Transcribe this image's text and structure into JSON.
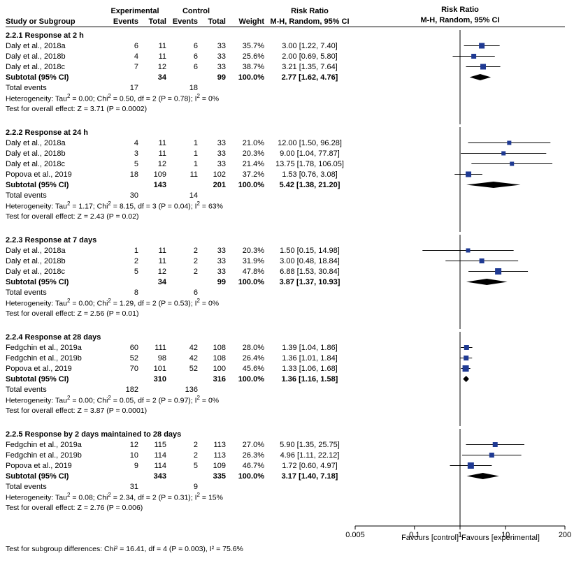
{
  "headers": {
    "study": "Study or Subgroup",
    "expGroup": "Experimental",
    "ctrlGroup": "Control",
    "events": "Events",
    "total": "Total",
    "weight": "Weight",
    "rr": "Risk Ratio",
    "rrModel": "M-H, Random, 95% CI"
  },
  "plot": {
    "domain_min": 0.005,
    "domain_max": 200,
    "domain_center": 1,
    "ticks": [
      0.005,
      0.1,
      1,
      10,
      200
    ],
    "tick_labels": [
      "0.005",
      "0.1",
      "1",
      "10",
      "200"
    ],
    "left_label": "Favours [control]",
    "right_label": "Favours [experimental]",
    "square_color": "#1f3a93",
    "diamond_color": "#000000",
    "line_color": "#000000"
  },
  "groups": [
    {
      "title": "2.2.1 Response at 2 h",
      "rows": [
        {
          "study": "Daly et al., 2018a",
          "e1": 6,
          "t1": 11,
          "e2": 6,
          "t2": 33,
          "w": "35.7%",
          "rr": "3.00 [1.22, 7.40]",
          "pt": 3.0,
          "lo": 1.22,
          "hi": 7.4,
          "sq": 8
        },
        {
          "study": "Daly et al., 2018b",
          "e1": 4,
          "t1": 11,
          "e2": 6,
          "t2": 33,
          "w": "25.6%",
          "rr": "2.00 [0.69, 5.80]",
          "pt": 2.0,
          "lo": 0.69,
          "hi": 5.8,
          "sq": 7
        },
        {
          "study": "Daly et al., 2018c",
          "e1": 7,
          "t1": 12,
          "e2": 6,
          "t2": 33,
          "w": "38.7%",
          "rr": "3.21 [1.35, 7.64]",
          "pt": 3.21,
          "lo": 1.35,
          "hi": 7.64,
          "sq": 8
        }
      ],
      "subtotal": {
        "t1": 34,
        "t2": 99,
        "w": "100.0%",
        "rr": "2.77 [1.62, 4.76]",
        "pt": 2.77,
        "lo": 1.62,
        "hi": 4.76
      },
      "total_events": {
        "label": "Total events",
        "e1": 17,
        "e2": 18
      },
      "het": "Heterogeneity: Tau² = 0.00; Chi² = 0.50, df = 2 (P = 0.78); I² = 0%",
      "test": "Test for overall effect: Z = 3.71 (P = 0.0002)"
    },
    {
      "title": "2.2.2 Response at 24 h",
      "rows": [
        {
          "study": "Daly et al., 2018a",
          "e1": 4,
          "t1": 11,
          "e2": 1,
          "t2": 33,
          "w": "21.0%",
          "rr": "12.00 [1.50, 96.28]",
          "pt": 12.0,
          "lo": 1.5,
          "hi": 96.28,
          "sq": 6
        },
        {
          "study": "Daly et al., 2018b",
          "e1": 3,
          "t1": 11,
          "e2": 1,
          "t2": 33,
          "w": "20.3%",
          "rr": "9.00 [1.04, 77.87]",
          "pt": 9.0,
          "lo": 1.04,
          "hi": 77.87,
          "sq": 6
        },
        {
          "study": "Daly et al., 2018c",
          "e1": 5,
          "t1": 12,
          "e2": 1,
          "t2": 33,
          "w": "21.4%",
          "rr": "13.75 [1.78, 106.05]",
          "pt": 13.75,
          "lo": 1.78,
          "hi": 106.05,
          "sq": 6
        },
        {
          "study": "Popova et al., 2019",
          "e1": 18,
          "t1": 109,
          "e2": 11,
          "t2": 102,
          "w": "37.2%",
          "rr": "1.53 [0.76, 3.08]",
          "pt": 1.53,
          "lo": 0.76,
          "hi": 3.08,
          "sq": 8
        }
      ],
      "subtotal": {
        "t1": 143,
        "t2": 201,
        "w": "100.0%",
        "rr": "5.42 [1.38, 21.20]",
        "pt": 5.42,
        "lo": 1.38,
        "hi": 21.2
      },
      "total_events": {
        "label": "Total events",
        "e1": 30,
        "e2": 14
      },
      "het": "Heterogeneity: Tau² = 1.17; Chi² = 8.15, df = 3 (P = 0.04); I² = 63%",
      "test": "Test for overall effect: Z = 2.43 (P = 0.02)"
    },
    {
      "title": "2.2.3 Response at 7 days",
      "rows": [
        {
          "study": "Daly et al., 2018a",
          "e1": 1,
          "t1": 11,
          "e2": 2,
          "t2": 33,
          "w": "20.3%",
          "rr": "1.50 [0.15, 14.98]",
          "pt": 1.5,
          "lo": 0.15,
          "hi": 14.98,
          "sq": 6
        },
        {
          "study": "Daly et al., 2018b",
          "e1": 2,
          "t1": 11,
          "e2": 2,
          "t2": 33,
          "w": "31.9%",
          "rr": "3.00 [0.48, 18.84]",
          "pt": 3.0,
          "lo": 0.48,
          "hi": 18.84,
          "sq": 7
        },
        {
          "study": "Daly et al., 2018c",
          "e1": 5,
          "t1": 12,
          "e2": 2,
          "t2": 33,
          "w": "47.8%",
          "rr": "6.88 [1.53, 30.84]",
          "pt": 6.88,
          "lo": 1.53,
          "hi": 30.84,
          "sq": 9
        }
      ],
      "subtotal": {
        "t1": 34,
        "t2": 99,
        "w": "100.0%",
        "rr": "3.87 [1.37, 10.93]",
        "pt": 3.87,
        "lo": 1.37,
        "hi": 10.93
      },
      "total_events": {
        "label": "Total events",
        "e1": 8,
        "e2": 6
      },
      "het": "Heterogeneity: Tau² = 0.00; Chi² = 1.29, df = 2 (P = 0.53); I² = 0%",
      "test": "Test for overall effect: Z = 2.56 (P = 0.01)"
    },
    {
      "title": "2.2.4 Response at 28 days",
      "rows": [
        {
          "study": "Fedgchin et al., 2019a",
          "e1": 60,
          "t1": 111,
          "e2": 42,
          "t2": 108,
          "w": "28.0%",
          "rr": "1.39 [1.04, 1.86]",
          "pt": 1.39,
          "lo": 1.04,
          "hi": 1.86,
          "sq": 7
        },
        {
          "study": "Fedgchin et al., 2019b",
          "e1": 52,
          "t1": 98,
          "e2": 42,
          "t2": 108,
          "w": "26.4%",
          "rr": "1.36 [1.01, 1.84]",
          "pt": 1.36,
          "lo": 1.01,
          "hi": 1.84,
          "sq": 7
        },
        {
          "study": "Popova et al., 2019",
          "e1": 70,
          "t1": 101,
          "e2": 52,
          "t2": 100,
          "w": "45.6%",
          "rr": "1.33 [1.06, 1.68]",
          "pt": 1.33,
          "lo": 1.06,
          "hi": 1.68,
          "sq": 9
        }
      ],
      "subtotal": {
        "t1": 310,
        "t2": 316,
        "w": "100.0%",
        "rr": "1.36 [1.16, 1.58]",
        "pt": 1.36,
        "lo": 1.16,
        "hi": 1.58
      },
      "total_events": {
        "label": "Total events",
        "e1": 182,
        "e2": 136
      },
      "het": "Heterogeneity: Tau² = 0.00; Chi² = 0.05, df = 2 (P = 0.97); I² = 0%",
      "test": "Test for overall effect: Z = 3.87 (P = 0.0001)"
    },
    {
      "title": "2.2.5 Response by 2 days maintained to 28 days",
      "rows": [
        {
          "study": "Fedgchin et al., 2019a",
          "e1": 12,
          "t1": 115,
          "e2": 2,
          "t2": 113,
          "w": "27.0%",
          "rr": "5.90 [1.35, 25.75]",
          "pt": 5.9,
          "lo": 1.35,
          "hi": 25.75,
          "sq": 7
        },
        {
          "study": "Fedgchin et al., 2019b",
          "e1": 10,
          "t1": 114,
          "e2": 2,
          "t2": 113,
          "w": "26.3%",
          "rr": "4.96 [1.11, 22.12]",
          "pt": 4.96,
          "lo": 1.11,
          "hi": 22.12,
          "sq": 7
        },
        {
          "study": "Popova et al., 2019",
          "e1": 9,
          "t1": 114,
          "e2": 5,
          "t2": 109,
          "w": "46.7%",
          "rr": "1.72 [0.60, 4.97]",
          "pt": 1.72,
          "lo": 0.6,
          "hi": 4.97,
          "sq": 9
        }
      ],
      "subtotal": {
        "t1": 343,
        "t2": 335,
        "w": "100.0%",
        "rr": "3.17 [1.40, 7.18]",
        "pt": 3.17,
        "lo": 1.4,
        "hi": 7.18
      },
      "total_events": {
        "label": "Total events",
        "e1": 31,
        "e2": 9
      },
      "het": "Heterogeneity: Tau² = 0.08; Chi² = 2.34, df = 2 (P = 0.31); I² = 15%",
      "test": "Test for overall effect: Z = 2.76 (P = 0.006)"
    }
  ],
  "subtotal_label": "Subtotal (95% CI)",
  "footer_test": "Test for subgroup differences: Chi² = 16.41, df = 4 (P = 0.003), I² = 75.6%"
}
